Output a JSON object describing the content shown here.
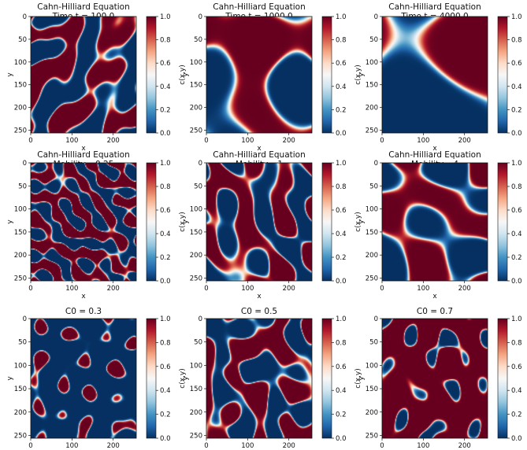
{
  "figure": {
    "cmap_colors": [
      "#67001f",
      "#b2182b",
      "#d6604d",
      "#f4a582",
      "#fddbc7",
      "#f7f7f7",
      "#d1e5f0",
      "#92c5de",
      "#4393c3",
      "#2166ac",
      "#053061"
    ]
  },
  "chart_data": [
    {
      "type": "heatmap",
      "title": [
        "Cahn-Hilliard Equation",
        "Time t = 100.0"
      ],
      "xlabel": "x",
      "ylabel": "y",
      "xticks": [
        0,
        100,
        200
      ],
      "yticks": [
        0,
        50,
        100,
        150,
        200,
        250
      ],
      "xlim": [
        0,
        256
      ],
      "ylim": [
        256,
        0
      ],
      "colorbar": {
        "label": "c(x,y)",
        "ticks": [
          "0.0",
          "0.2",
          "0.4",
          "0.6",
          "0.8",
          "1.0"
        ],
        "range": [
          0,
          1
        ]
      },
      "pattern": {
        "kind": "labyrinth",
        "scale": 0.08,
        "fraction": 0.5,
        "seed": 1
      }
    },
    {
      "type": "heatmap",
      "title": [
        "Cahn-Hilliard Equation",
        "Time t = 1000.0"
      ],
      "xlabel": "x",
      "ylabel": "y",
      "xticks": [
        0,
        100,
        200
      ],
      "yticks": [
        0,
        50,
        100,
        150,
        200,
        250
      ],
      "xlim": [
        0,
        256
      ],
      "ylim": [
        256,
        0
      ],
      "colorbar": {
        "label": "c(x,y)",
        "ticks": [
          "0.0",
          "0.2",
          "0.4",
          "0.6",
          "0.8",
          "1.0"
        ],
        "range": [
          0,
          1
        ]
      },
      "pattern": {
        "kind": "labyrinth",
        "scale": 0.03,
        "fraction": 0.5,
        "seed": 2
      }
    },
    {
      "type": "heatmap",
      "title": [
        "Cahn-Hilliard Equation",
        "Time t = 4000.0"
      ],
      "xlabel": "x",
      "ylabel": "y",
      "xticks": [
        0,
        100,
        200
      ],
      "yticks": [
        0,
        50,
        100,
        150,
        200,
        250
      ],
      "xlim": [
        0,
        256
      ],
      "ylim": [
        256,
        0
      ],
      "colorbar": {
        "label": "c(x,y)",
        "ticks": [
          "0.0",
          "0.2",
          "0.4",
          "0.6",
          "0.8",
          "1.0"
        ],
        "range": [
          0,
          1
        ]
      },
      "pattern": {
        "kind": "labyrinth",
        "scale": 0.016,
        "fraction": 0.5,
        "seed": 3
      }
    },
    {
      "type": "heatmap",
      "title": [
        "Cahn-Hilliard Equation",
        "Mobility =0.25"
      ],
      "xlabel": "x",
      "ylabel": "y",
      "xticks": [
        0,
        100,
        200
      ],
      "yticks": [
        0,
        50,
        100,
        150,
        200,
        250
      ],
      "xlim": [
        0,
        256
      ],
      "ylim": [
        256,
        0
      ],
      "colorbar": {
        "label": "c(x,y)",
        "ticks": [
          "0.0",
          "0.2",
          "0.4",
          "0.6",
          "0.8",
          "1.0"
        ],
        "range": [
          0,
          1
        ]
      },
      "pattern": {
        "kind": "labyrinth",
        "scale": 0.14,
        "fraction": 0.5,
        "seed": 4
      }
    },
    {
      "type": "heatmap",
      "title": [
        "Cahn-Hilliard Equation",
        "Mobility =1"
      ],
      "xlabel": "x",
      "ylabel": "y",
      "xticks": [
        0,
        100,
        200
      ],
      "yticks": [
        0,
        50,
        100,
        150,
        200,
        250
      ],
      "xlim": [
        0,
        256
      ],
      "ylim": [
        256,
        0
      ],
      "colorbar": {
        "label": "c(x,y)",
        "ticks": [
          "0.0",
          "0.2",
          "0.4",
          "0.6",
          "0.8",
          "1.0"
        ],
        "range": [
          0,
          1
        ]
      },
      "pattern": {
        "kind": "labyrinth",
        "scale": 0.08,
        "fraction": 0.5,
        "seed": 5
      }
    },
    {
      "type": "heatmap",
      "title": [
        "Cahn-Hilliard Equation",
        "Mobility =4"
      ],
      "xlabel": "x",
      "ylabel": "y",
      "xticks": [
        0,
        100,
        200
      ],
      "yticks": [
        0,
        50,
        100,
        150,
        200,
        250
      ],
      "xlim": [
        0,
        256
      ],
      "ylim": [
        256,
        0
      ],
      "colorbar": {
        "label": "c(x,y)",
        "ticks": [
          "0.0",
          "0.2",
          "0.4",
          "0.6",
          "0.8",
          "1.0"
        ],
        "range": [
          0,
          1
        ]
      },
      "pattern": {
        "kind": "labyrinth",
        "scale": 0.045,
        "fraction": 0.5,
        "seed": 6
      }
    },
    {
      "type": "heatmap",
      "title": [
        "C0 = 0.3"
      ],
      "xlabel": "x",
      "ylabel": "y",
      "xticks": [
        0,
        100,
        200
      ],
      "yticks": [
        0,
        50,
        100,
        150,
        200,
        250
      ],
      "xlim": [
        0,
        256
      ],
      "ylim": [
        256,
        0
      ],
      "colorbar": {
        "label": "c(x,y)",
        "ticks": [
          "0.0",
          "0.2",
          "0.4",
          "0.6",
          "0.8",
          "1.0"
        ],
        "range": [
          0,
          1
        ]
      },
      "pattern": {
        "kind": "droplets",
        "scale": 0.09,
        "fraction": 0.3,
        "seed": 7
      }
    },
    {
      "type": "heatmap",
      "title": [
        "C0 = 0.5"
      ],
      "xlabel": "x",
      "ylabel": "y",
      "xticks": [
        0,
        100,
        200
      ],
      "yticks": [
        0,
        50,
        100,
        150,
        200,
        250
      ],
      "xlim": [
        0,
        256
      ],
      "ylim": [
        256,
        0
      ],
      "colorbar": {
        "label": "c(x,y)",
        "ticks": [
          "0.0",
          "0.2",
          "0.4",
          "0.6",
          "0.8",
          "1.0"
        ],
        "range": [
          0,
          1
        ]
      },
      "pattern": {
        "kind": "labyrinth",
        "scale": 0.08,
        "fraction": 0.5,
        "seed": 8
      }
    },
    {
      "type": "heatmap",
      "title": [
        "C0 = 0.7"
      ],
      "xlabel": "x",
      "ylabel": "y",
      "xticks": [
        0,
        100,
        200
      ],
      "yticks": [
        0,
        50,
        100,
        150,
        200,
        250
      ],
      "xlim": [
        0,
        256
      ],
      "ylim": [
        256,
        0
      ],
      "colorbar": {
        "label": "c(x,y)",
        "ticks": [
          "0.0",
          "0.2",
          "0.4",
          "0.6",
          "0.8",
          "1.0"
        ],
        "range": [
          0,
          1
        ]
      },
      "pattern": {
        "kind": "droplets",
        "scale": 0.09,
        "fraction": 0.7,
        "seed": 9
      }
    }
  ]
}
